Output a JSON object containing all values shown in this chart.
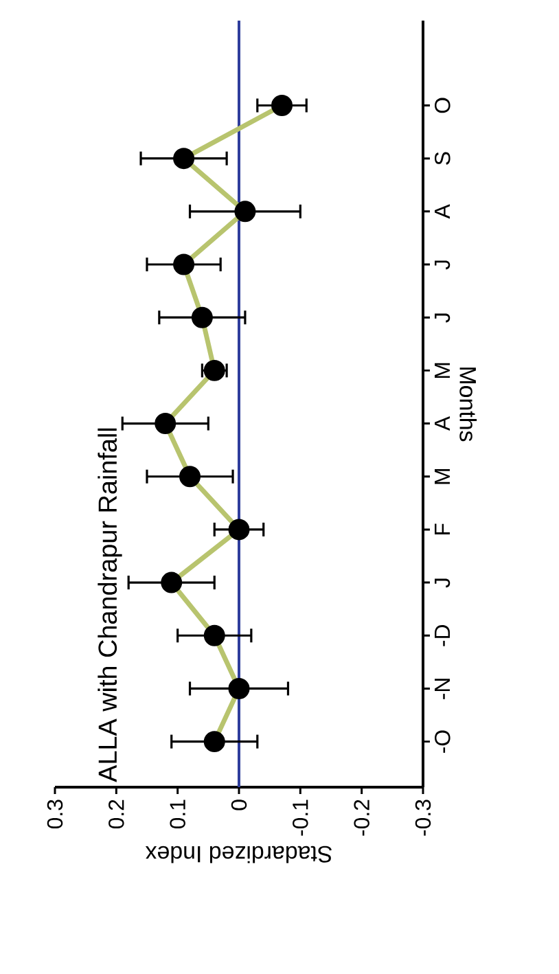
{
  "chart_data": {
    "type": "line",
    "orientation": "horizontal",
    "title": "ALLA with Chandrapur Rainfall",
    "xlabel": "Stadardized Index",
    "ylabel": "Months",
    "categories": [
      "O",
      "S",
      "A",
      "J",
      "J",
      "M",
      "A",
      "M",
      "F",
      "J",
      "-D",
      "-N",
      "-O"
    ],
    "values": [
      -0.07,
      0.09,
      -0.01,
      0.09,
      0.06,
      0.04,
      0.12,
      0.08,
      0,
      0.11,
      0.04,
      0,
      0.04
    ],
    "errors": [
      0.04,
      0.07,
      0.09,
      0.06,
      0.07,
      0.02,
      0.07,
      0.07,
      0.04,
      0.07,
      0.06,
      0.08,
      0.07
    ],
    "color": "#b8c46e",
    "marker": "circle",
    "line_style": "solid",
    "xlim": [
      0.3,
      -0.3
    ],
    "xticks": [
      0.3,
      0.2,
      0.1,
      0,
      -0.1,
      -0.2,
      -0.3
    ],
    "ref_lines": [
      {
        "axis": "x",
        "value": 0,
        "color": "#2e3d9c"
      }
    ]
  }
}
